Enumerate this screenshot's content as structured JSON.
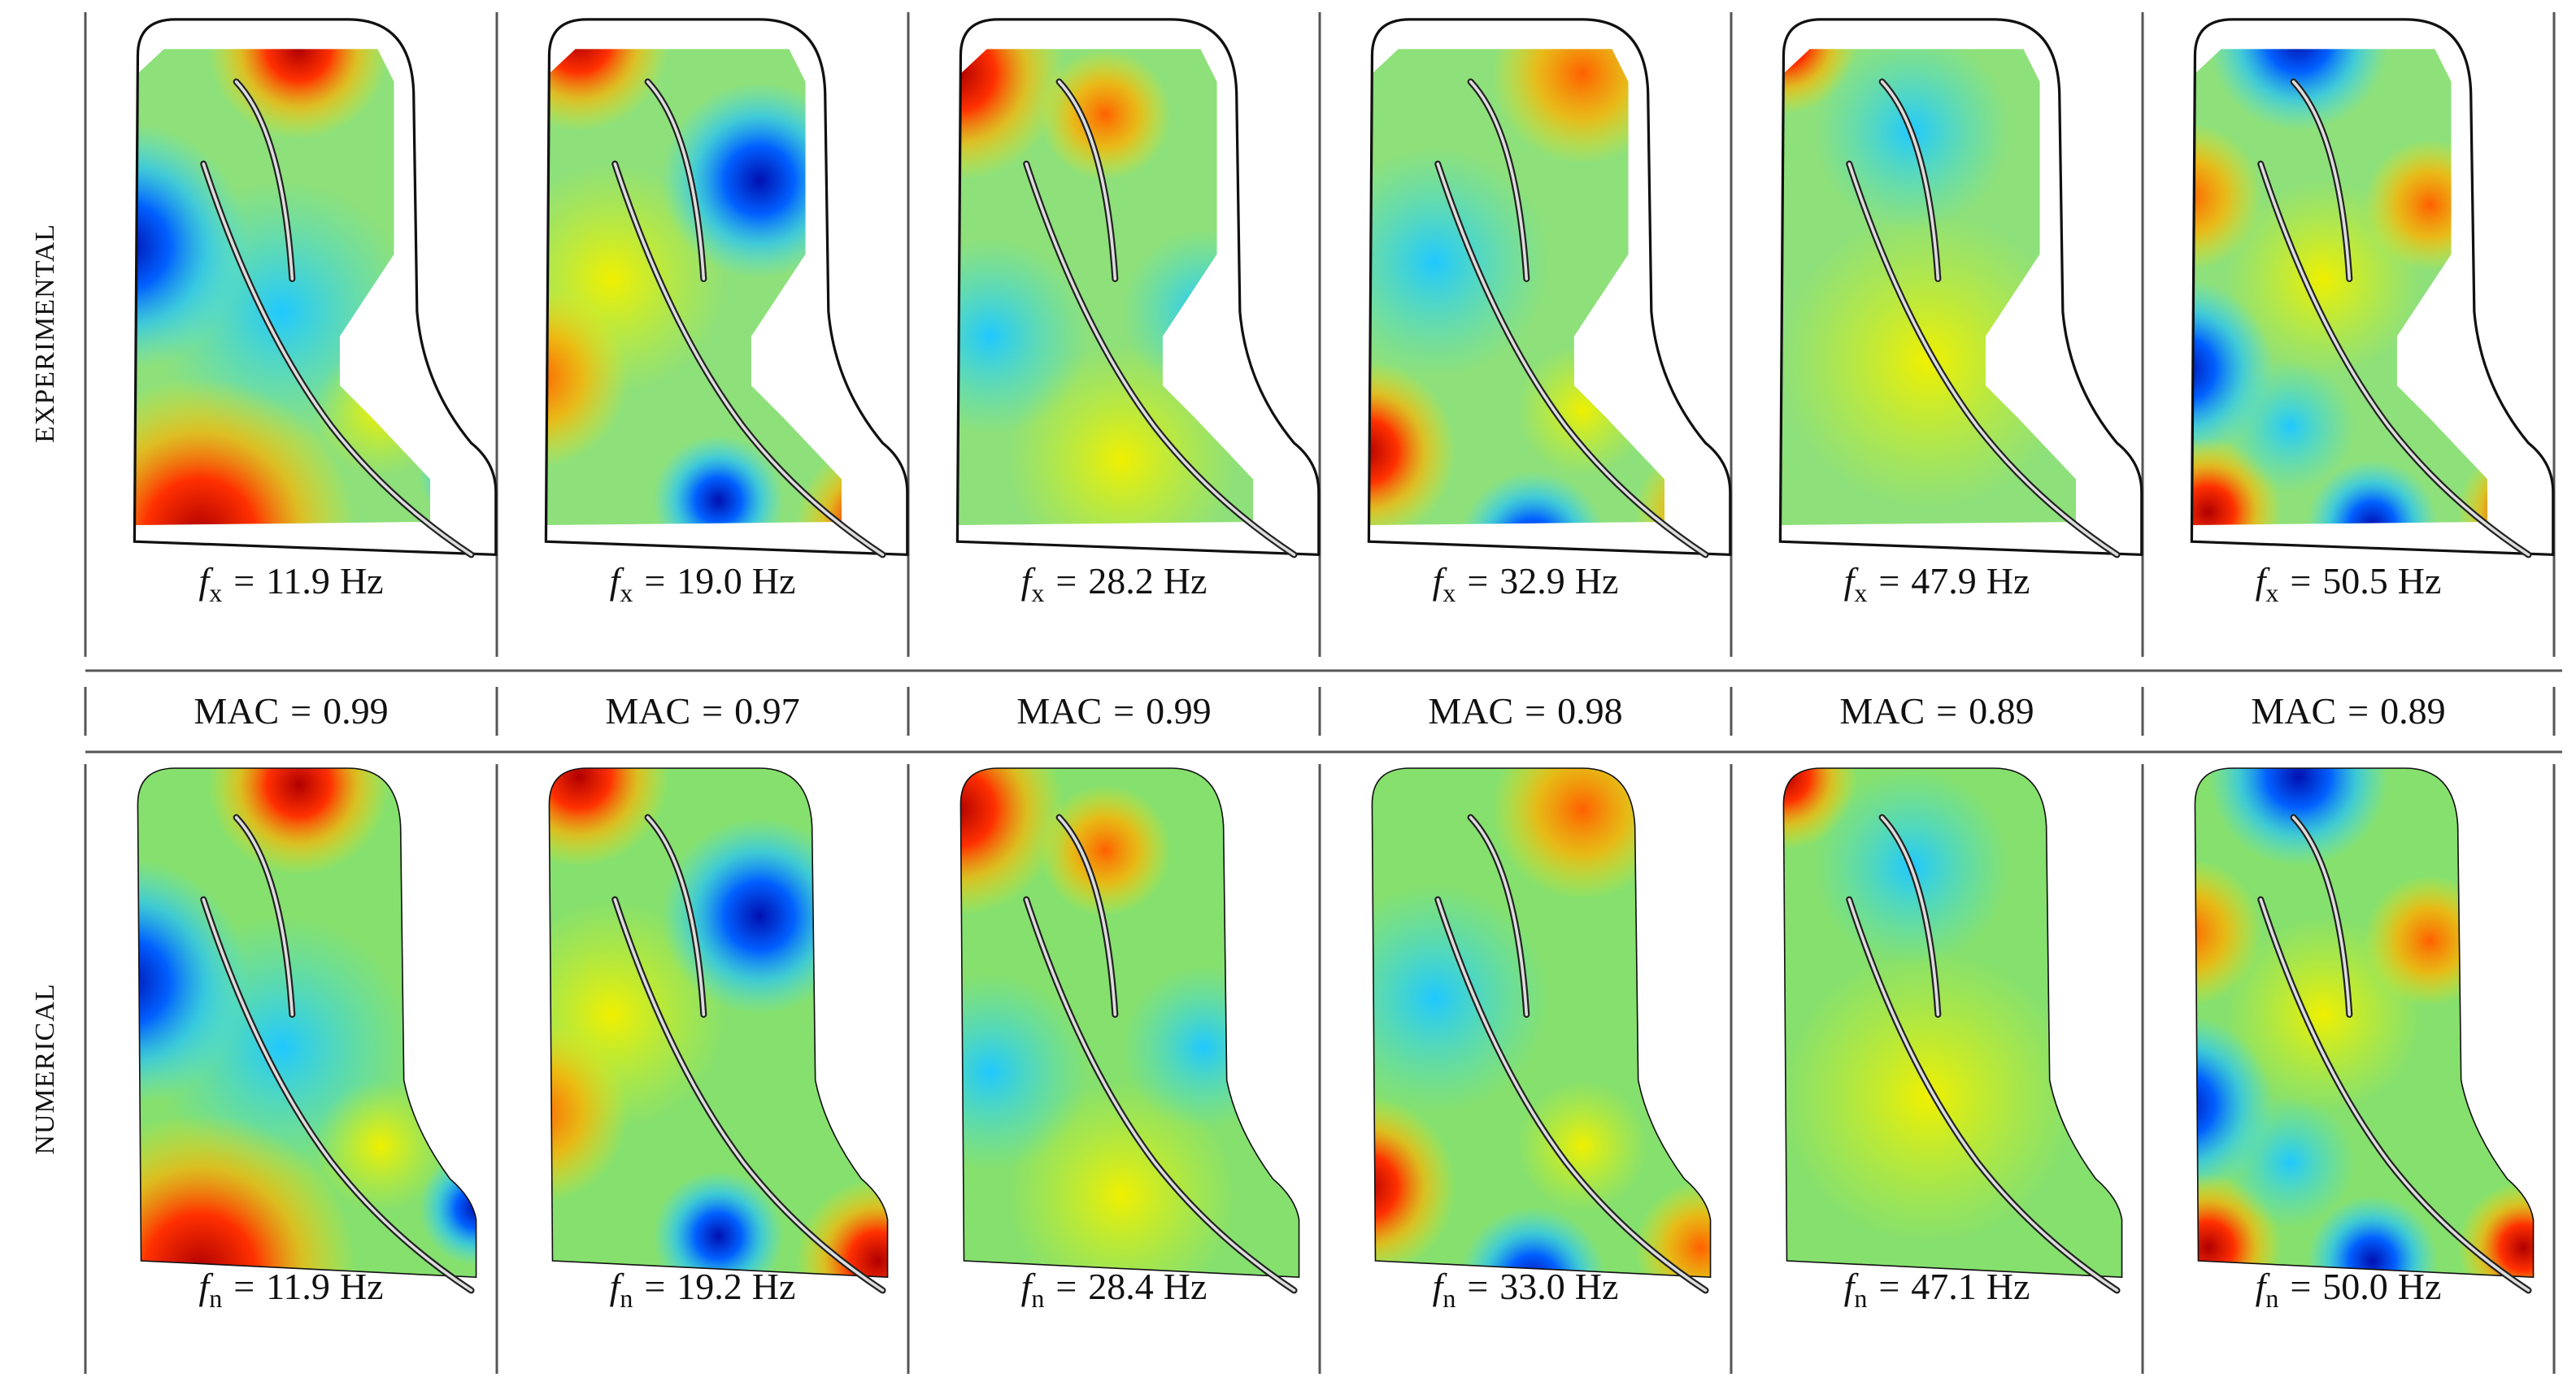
{
  "rows": [
    {
      "label": "EXPERIMENTAL",
      "symbol": "f",
      "subscript": "x",
      "relation": "=",
      "unit": "Hz",
      "frequencies": [
        "11.9",
        "19.0",
        "28.2",
        "32.9",
        "47.9",
        "50.5"
      ]
    },
    {
      "label": "NUMERICAL",
      "symbol": "f",
      "subscript": "n",
      "relation": "=",
      "unit": "Hz",
      "frequencies": [
        "11.9",
        "19.2",
        "28.4",
        "33.0",
        "47.1",
        "50.0"
      ]
    }
  ],
  "mac": {
    "label": "MAC",
    "relation": "=",
    "values": [
      "0.99",
      "0.97",
      "0.99",
      "0.98",
      "0.89",
      "0.89"
    ]
  }
}
